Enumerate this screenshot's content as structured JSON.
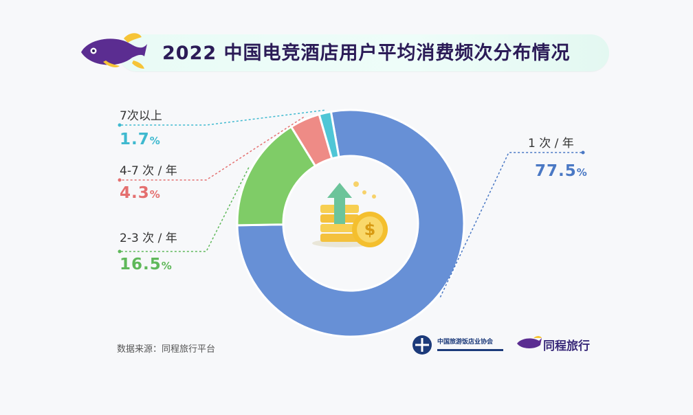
{
  "title": "2022 中国电竞酒店用户平均消费频次分布情况",
  "chart_data": {
    "type": "pie",
    "donut": true,
    "categories": [
      "1 次 / 年",
      "2-3 次 / 年",
      "4-7 次 / 年",
      "7次以上"
    ],
    "values": [
      77.5,
      16.5,
      4.3,
      1.7
    ],
    "value_labels": [
      "77.5",
      "16.5",
      "4.3",
      "1.7"
    ],
    "unit": "%",
    "colors": [
      "#6790d6",
      "#7fcc67",
      "#ee8b86",
      "#4fc6d6"
    ]
  },
  "labels": {
    "once": {
      "name": "1 次 / 年",
      "pct": "77.5",
      "color": "#4a78c4"
    },
    "two_three": {
      "name": "2-3 次 / 年",
      "pct": "16.5",
      "color": "#5fb85a"
    },
    "four_seven": {
      "name": "4-7 次 / 年",
      "pct": "4.3",
      "color": "#e46f6f"
    },
    "seven_plus": {
      "name": "7次以上",
      "pct": "1.7",
      "color": "#3fb9cf"
    }
  },
  "percent_sign": "%",
  "source": "数据来源：同程旅行平台",
  "logos": {
    "association": "中国旅游饭店业协会",
    "brand": "同程旅行"
  }
}
